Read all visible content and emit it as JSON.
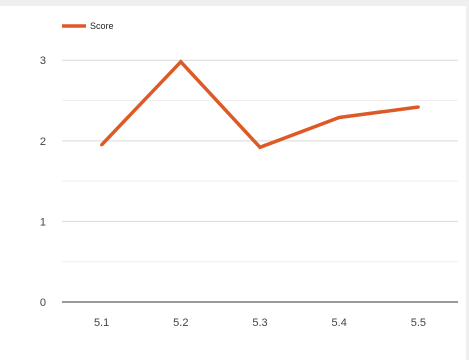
{
  "chart_data": {
    "type": "line",
    "title": "",
    "xlabel": "",
    "ylabel": "",
    "categories": [
      "5.1",
      "5.2",
      "5.3",
      "5.4",
      "5.5"
    ],
    "series": [
      {
        "name": "Score",
        "color": "#dd5a26",
        "values": [
          1.95,
          2.98,
          1.92,
          2.29,
          2.42
        ]
      }
    ],
    "ylim": [
      0,
      3.4
    ],
    "yticks": [
      0,
      1,
      2,
      3
    ],
    "grid": true,
    "legend": "top-left"
  }
}
